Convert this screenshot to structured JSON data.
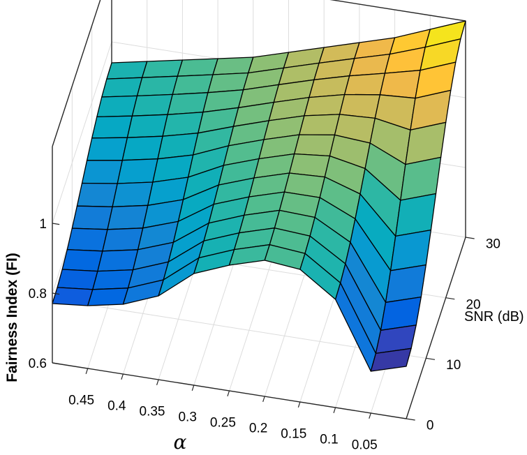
{
  "chart_data": {
    "type": "surface3d",
    "xlabel": "α",
    "ylabel": "SNR (dB)",
    "zlabel": "Fairness Index (FI)",
    "x_ticks": [
      "0.45",
      "0.4",
      "0.35",
      "0.3",
      "0.25",
      "0.2",
      "0.15",
      "0.1",
      "0.05"
    ],
    "y_ticks": [
      "0",
      "10",
      "20",
      "30"
    ],
    "z_ticks": [
      "0.6",
      "0.8",
      "1"
    ],
    "alpha_values": [
      0.5,
      0.45,
      0.4,
      0.35,
      0.3,
      0.25,
      0.2,
      0.15,
      0.1,
      0.05,
      0
    ],
    "snr_values": [
      0,
      2.5,
      5,
      7.5,
      10,
      12.5,
      15,
      17.5,
      20,
      22.5,
      25,
      27.5,
      30
    ],
    "fi_min": [
      0.77,
      0.78,
      0.8,
      0.84,
      0.92,
      0.96,
      0.99,
      0.98,
      0.91,
      0.72,
      0.75
    ],
    "fi_max": [
      0.94,
      0.96,
      0.98,
      1.0,
      1.02,
      1.05,
      1.08,
      1.11,
      1.14,
      1.18,
      1.22
    ],
    "zlim": [
      0.6,
      1.2
    ],
    "colormap": "parula",
    "grid": true
  }
}
